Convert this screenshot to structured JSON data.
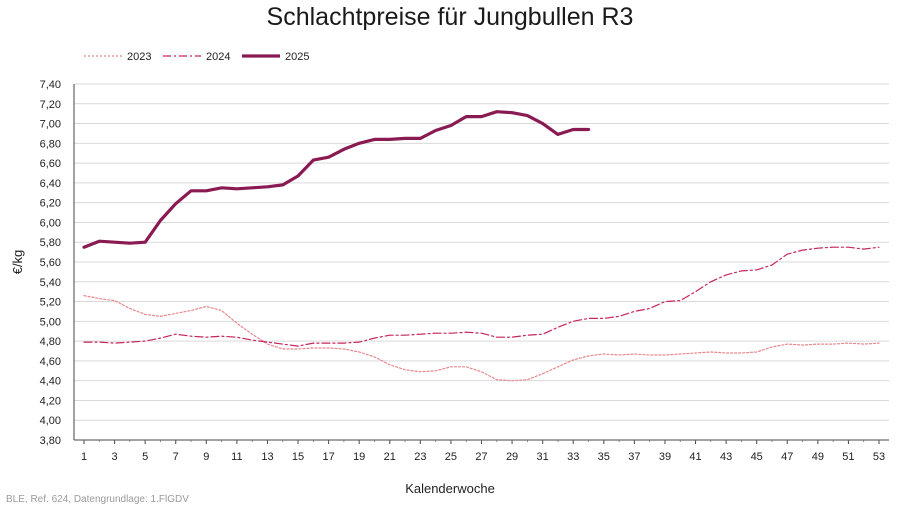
{
  "chart_data": {
    "type": "line",
    "title": "Schlachtpreise für Jungbullen R3",
    "xlabel": "Kalenderwoche",
    "ylabel": "€/kg",
    "xlim": [
      1,
      53
    ],
    "ylim": [
      3.8,
      7.4
    ],
    "x_ticks": [
      "1",
      "3",
      "5",
      "7",
      "9",
      "11",
      "13",
      "15",
      "17",
      "19",
      "21",
      "23",
      "25",
      "27",
      "29",
      "31",
      "33",
      "35",
      "37",
      "39",
      "41",
      "43",
      "45",
      "47",
      "49",
      "51",
      "53"
    ],
    "y_ticks": [
      "3,80",
      "4,00",
      "4,20",
      "4,40",
      "4,60",
      "4,80",
      "5,00",
      "5,20",
      "5,40",
      "5,60",
      "5,80",
      "6,00",
      "6,20",
      "6,40",
      "6,60",
      "6,80",
      "7,00",
      "7,20",
      "7,40"
    ],
    "legend_position": "top-left",
    "grid": true,
    "series": [
      {
        "name": "2023",
        "color": "#e8868c",
        "style": "dotted",
        "values": [
          5.26,
          5.23,
          5.21,
          5.13,
          5.07,
          5.05,
          5.08,
          5.11,
          5.15,
          5.11,
          4.98,
          4.87,
          4.77,
          4.72,
          4.72,
          4.73,
          4.73,
          4.72,
          4.69,
          4.64,
          4.56,
          4.51,
          4.49,
          4.5,
          4.54,
          4.54,
          4.49,
          4.41,
          4.4,
          4.41,
          4.47,
          4.54,
          4.61,
          4.65,
          4.67,
          4.66,
          4.67,
          4.66,
          4.66,
          4.67,
          4.68,
          4.69,
          4.68,
          4.68,
          4.69,
          4.74,
          4.77,
          4.76,
          4.77,
          4.77,
          4.78,
          4.77,
          4.78
        ]
      },
      {
        "name": "2024",
        "color": "#c7245c",
        "style": "dashdot",
        "values": [
          4.79,
          4.79,
          4.78,
          4.79,
          4.8,
          4.83,
          4.87,
          4.85,
          4.84,
          4.85,
          4.84,
          4.81,
          4.79,
          4.77,
          4.75,
          4.78,
          4.78,
          4.78,
          4.79,
          4.83,
          4.86,
          4.86,
          4.87,
          4.88,
          4.88,
          4.89,
          4.88,
          4.84,
          4.84,
          4.86,
          4.87,
          4.94,
          5.0,
          5.03,
          5.03,
          5.05,
          5.1,
          5.13,
          5.2,
          5.21,
          5.3,
          5.4,
          5.47,
          5.51,
          5.52,
          5.57,
          5.68,
          5.72,
          5.74,
          5.75,
          5.75,
          5.73,
          5.75
        ]
      },
      {
        "name": "2025",
        "color": "#8a1a52",
        "style": "solid",
        "values": [
          5.75,
          5.81,
          5.8,
          5.79,
          5.8,
          6.02,
          6.19,
          6.32,
          6.32,
          6.35,
          6.34,
          6.35,
          6.36,
          6.38,
          6.47,
          6.63,
          6.66,
          6.74,
          6.8,
          6.84,
          6.84,
          6.85,
          6.85,
          6.93,
          6.98,
          7.07,
          7.07,
          7.12,
          7.11,
          7.08,
          7.0,
          6.89,
          6.94,
          6.94
        ]
      }
    ]
  },
  "source_note": "BLE, Ref. 624, Datengrundlage: 1.FlGDV"
}
